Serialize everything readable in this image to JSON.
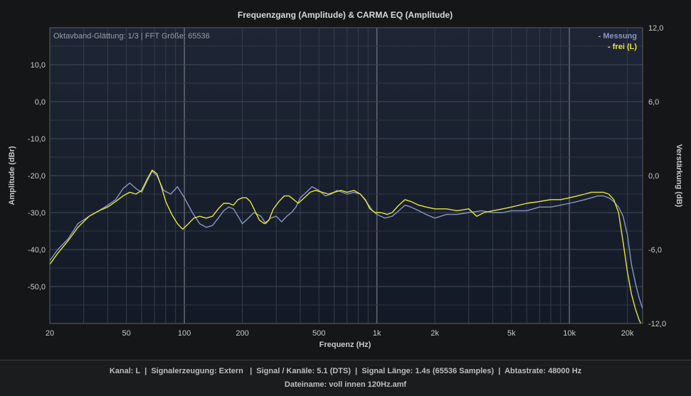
{
  "chart_data": {
    "type": "line",
    "title": "Frequenzgang (Amplitude) & CARMA EQ (Amplitude)",
    "info_text": "Oktavband-Glättung: 1/3 | FFT Größe: 65536",
    "xlabel": "Frequenz (Hz)",
    "ylabel_left": "Amplitude (dBr)",
    "ylabel_right": "Verstärkung (dB)",
    "x_scale": "log",
    "xlim": [
      20,
      24000
    ],
    "ylim_left": [
      -60,
      20
    ],
    "ylim_right": [
      -12,
      12
    ],
    "grid": true,
    "legend_position": "top-right",
    "x_ticks": [
      {
        "value": 20,
        "label": "20"
      },
      {
        "value": 50,
        "label": "50"
      },
      {
        "value": 100,
        "label": "100"
      },
      {
        "value": 200,
        "label": "200"
      },
      {
        "value": 500,
        "label": "500"
      },
      {
        "value": 1000,
        "label": "1k"
      },
      {
        "value": 2000,
        "label": "2k"
      },
      {
        "value": 5000,
        "label": "5k"
      },
      {
        "value": 10000,
        "label": "10k"
      },
      {
        "value": 20000,
        "label": "20k"
      }
    ],
    "y_ticks_left": [
      {
        "value": 10,
        "label": "10,0"
      },
      {
        "value": 0,
        "label": "0,0"
      },
      {
        "value": -10,
        "label": "-10,0"
      },
      {
        "value": -20,
        "label": "-20,0"
      },
      {
        "value": -30,
        "label": "-30,0"
      },
      {
        "value": -40,
        "label": "-40,0"
      },
      {
        "value": -50,
        "label": "-50,0"
      }
    ],
    "y_ticks_right": [
      {
        "value": 12,
        "label": "12,0"
      },
      {
        "value": 6,
        "label": "6,0"
      },
      {
        "value": 0,
        "label": "0,0"
      },
      {
        "value": -6,
        "label": "-6,0"
      },
      {
        "value": -12,
        "label": "-12,0"
      }
    ],
    "series": [
      {
        "name": "- Messung",
        "color": "#8a95c2",
        "points": [
          [
            20,
            -43
          ],
          [
            22,
            -40
          ],
          [
            25,
            -37
          ],
          [
            28,
            -33
          ],
          [
            32,
            -31
          ],
          [
            36,
            -29.5
          ],
          [
            40,
            -28
          ],
          [
            44,
            -26.5
          ],
          [
            48,
            -23.5
          ],
          [
            52,
            -22
          ],
          [
            56,
            -23.5
          ],
          [
            60,
            -24.5
          ],
          [
            64,
            -21.5
          ],
          [
            68,
            -18.8
          ],
          [
            72,
            -20
          ],
          [
            78,
            -24
          ],
          [
            85,
            -25
          ],
          [
            92,
            -23
          ],
          [
            100,
            -26
          ],
          [
            110,
            -30
          ],
          [
            120,
            -33
          ],
          [
            130,
            -34
          ],
          [
            140,
            -33.5
          ],
          [
            150,
            -31.5
          ],
          [
            160,
            -29.5
          ],
          [
            170,
            -28.5
          ],
          [
            180,
            -29
          ],
          [
            190,
            -31
          ],
          [
            200,
            -33
          ],
          [
            215,
            -31.5
          ],
          [
            230,
            -30
          ],
          [
            250,
            -31
          ],
          [
            265,
            -33
          ],
          [
            280,
            -31.5
          ],
          [
            300,
            -31
          ],
          [
            320,
            -32.5
          ],
          [
            340,
            -31
          ],
          [
            360,
            -30
          ],
          [
            380,
            -28.5
          ],
          [
            400,
            -26
          ],
          [
            430,
            -24.5
          ],
          [
            460,
            -23
          ],
          [
            500,
            -24
          ],
          [
            540,
            -25.5
          ],
          [
            580,
            -25
          ],
          [
            620,
            -24
          ],
          [
            660,
            -24.5
          ],
          [
            700,
            -25
          ],
          [
            760,
            -24.5
          ],
          [
            820,
            -25
          ],
          [
            880,
            -27
          ],
          [
            950,
            -29.5
          ],
          [
            1000,
            -30.5
          ],
          [
            1100,
            -31.5
          ],
          [
            1200,
            -31
          ],
          [
            1300,
            -29.5
          ],
          [
            1400,
            -28
          ],
          [
            1500,
            -28.5
          ],
          [
            1650,
            -29.5
          ],
          [
            1800,
            -30.5
          ],
          [
            2000,
            -31.5
          ],
          [
            2300,
            -30.5
          ],
          [
            2600,
            -30.5
          ],
          [
            3000,
            -30
          ],
          [
            3500,
            -29.5
          ],
          [
            4000,
            -30
          ],
          [
            4500,
            -30
          ],
          [
            5000,
            -29.5
          ],
          [
            6000,
            -29.5
          ],
          [
            7000,
            -28.5
          ],
          [
            8000,
            -28.5
          ],
          [
            9000,
            -28
          ],
          [
            10000,
            -27.5
          ],
          [
            11000,
            -27
          ],
          [
            12000,
            -26.5
          ],
          [
            13000,
            -26
          ],
          [
            14000,
            -25.5
          ],
          [
            15000,
            -25.5
          ],
          [
            16000,
            -26
          ],
          [
            17000,
            -27
          ],
          [
            18000,
            -28.5
          ],
          [
            19000,
            -31
          ],
          [
            20000,
            -36
          ],
          [
            21000,
            -44
          ],
          [
            22000,
            -49
          ],
          [
            23000,
            -53
          ],
          [
            24000,
            -56
          ]
        ]
      },
      {
        "name": "- frei (L)",
        "color": "#e6e636",
        "points": [
          [
            20,
            -44
          ],
          [
            22,
            -41
          ],
          [
            25,
            -37.5
          ],
          [
            28,
            -34
          ],
          [
            32,
            -31
          ],
          [
            36,
            -29.5
          ],
          [
            40,
            -28.5
          ],
          [
            44,
            -27
          ],
          [
            48,
            -25.5
          ],
          [
            52,
            -24.5
          ],
          [
            56,
            -25
          ],
          [
            60,
            -24
          ],
          [
            64,
            -21
          ],
          [
            68,
            -18.5
          ],
          [
            72,
            -19.5
          ],
          [
            76,
            -23
          ],
          [
            80,
            -27
          ],
          [
            86,
            -30.5
          ],
          [
            92,
            -33
          ],
          [
            98,
            -34.5
          ],
          [
            105,
            -33
          ],
          [
            112,
            -31.5
          ],
          [
            120,
            -31
          ],
          [
            130,
            -31.5
          ],
          [
            140,
            -31
          ],
          [
            150,
            -29
          ],
          [
            160,
            -27.5
          ],
          [
            170,
            -27.5
          ],
          [
            180,
            -28
          ],
          [
            190,
            -26.5
          ],
          [
            200,
            -26
          ],
          [
            210,
            -26
          ],
          [
            220,
            -27
          ],
          [
            230,
            -29
          ],
          [
            245,
            -32
          ],
          [
            260,
            -33
          ],
          [
            275,
            -32
          ],
          [
            290,
            -29
          ],
          [
            310,
            -27
          ],
          [
            330,
            -25.5
          ],
          [
            350,
            -25.5
          ],
          [
            370,
            -26.5
          ],
          [
            390,
            -27.5
          ],
          [
            420,
            -26
          ],
          [
            450,
            -24.5
          ],
          [
            480,
            -24
          ],
          [
            520,
            -24.5
          ],
          [
            560,
            -25
          ],
          [
            600,
            -24.5
          ],
          [
            650,
            -24
          ],
          [
            700,
            -24.5
          ],
          [
            760,
            -24
          ],
          [
            820,
            -25
          ],
          [
            870,
            -26.5
          ],
          [
            920,
            -29
          ],
          [
            980,
            -30
          ],
          [
            1050,
            -30
          ],
          [
            1130,
            -30.5
          ],
          [
            1200,
            -30
          ],
          [
            1300,
            -28
          ],
          [
            1400,
            -26.5
          ],
          [
            1500,
            -27
          ],
          [
            1650,
            -28
          ],
          [
            1800,
            -28.5
          ],
          [
            2000,
            -29
          ],
          [
            2300,
            -29
          ],
          [
            2600,
            -29.5
          ],
          [
            3000,
            -29
          ],
          [
            3300,
            -31
          ],
          [
            3600,
            -30
          ],
          [
            4000,
            -29.5
          ],
          [
            4500,
            -29
          ],
          [
            5000,
            -28.5
          ],
          [
            6000,
            -27.5
          ],
          [
            7000,
            -27
          ],
          [
            8000,
            -26.5
          ],
          [
            9000,
            -26.5
          ],
          [
            10000,
            -26
          ],
          [
            11000,
            -25.5
          ],
          [
            12000,
            -25
          ],
          [
            13000,
            -24.5
          ],
          [
            14000,
            -24.5
          ],
          [
            15000,
            -24.5
          ],
          [
            16000,
            -25
          ],
          [
            17000,
            -26.5
          ],
          [
            18000,
            -30
          ],
          [
            19000,
            -38
          ],
          [
            20000,
            -46
          ],
          [
            21000,
            -52
          ],
          [
            22000,
            -56
          ],
          [
            23000,
            -59
          ],
          [
            24000,
            -61
          ]
        ]
      }
    ]
  },
  "footer": {
    "line1": "Kanal: L  |  Signalerzeugung: Extern   |  Signal / Kanäle: 5.1 (DTS)  |  Signal Länge: 1.4s (65536 Samples)  |  Abtastrate: 48000 Hz",
    "line2": "Dateiname: voll innen 120Hz.amf"
  },
  "colors": {
    "background": "#151617",
    "plot_background_top": "#1e2535",
    "plot_background_bottom": "#141b27",
    "grid_minor": "#3a4150",
    "grid_major": "#6a6f78",
    "text": "#c9c9c9"
  }
}
